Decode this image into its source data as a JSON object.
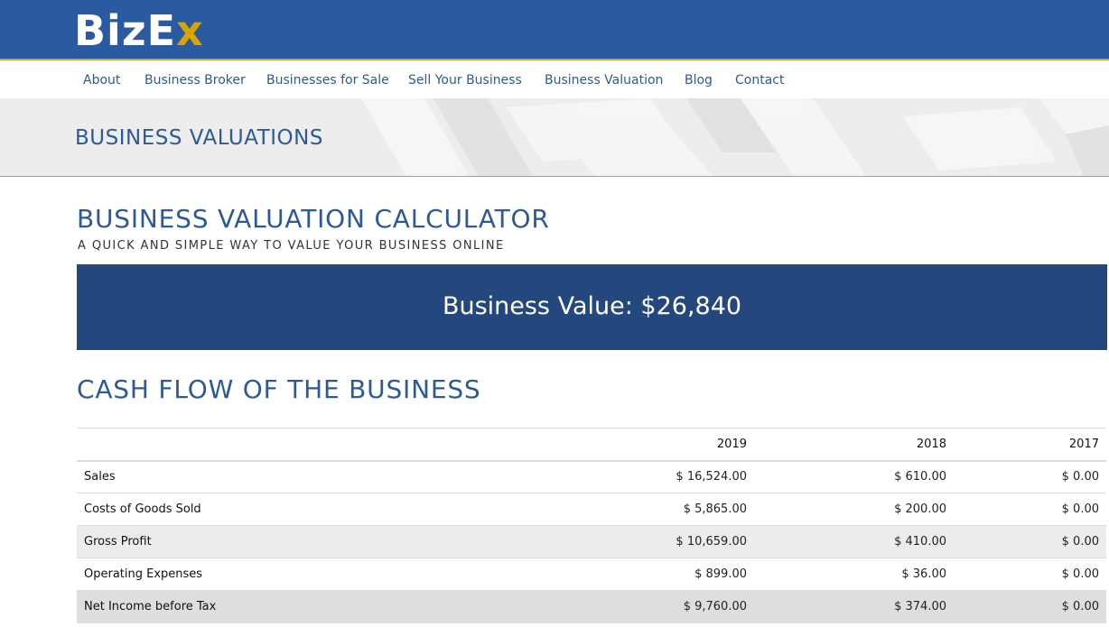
{
  "header": {
    "logo_text_1": "BizE",
    "logo_text_2": "x",
    "colors": {
      "brand_blue": "#2a5aa0",
      "accent_gold": "#c9a227",
      "dark_blue": "#24477d"
    }
  },
  "nav": {
    "items": [
      "About",
      "Business Broker",
      "Businesses for Sale",
      "Sell Your Business",
      "Business Valuation",
      "Blog",
      "Contact"
    ]
  },
  "banner": {
    "title": "BUSINESS VALUATIONS"
  },
  "calculator": {
    "title": "BUSINESS VALUATION CALCULATOR",
    "subtitle": "A QUICK AND SIMPLE WAY TO VALUE YOUR BUSINESS ONLINE",
    "value_text": "Business Value: $26,840"
  },
  "cashflow": {
    "title": "CASH FLOW OF THE BUSINESS",
    "columns": [
      "",
      "2019",
      "2018",
      "2017"
    ],
    "rows": [
      {
        "label": "Sales",
        "values": [
          "$ 16,524.00",
          "$ 610.00",
          "$ 0.00"
        ]
      },
      {
        "label": "Costs of Goods Sold",
        "values": [
          "$ 5,865.00",
          "$ 200.00",
          "$ 0.00"
        ]
      },
      {
        "label": "Gross Profit",
        "values": [
          "$ 10,659.00",
          "$ 410.00",
          "$ 0.00"
        ]
      },
      {
        "label": "Operating Expenses",
        "values": [
          "$ 899.00",
          "$ 36.00",
          "$ 0.00"
        ]
      },
      {
        "label": "Net Income before Tax",
        "values": [
          "$ 9,760.00",
          "$ 374.00",
          "$ 0.00"
        ]
      }
    ]
  }
}
